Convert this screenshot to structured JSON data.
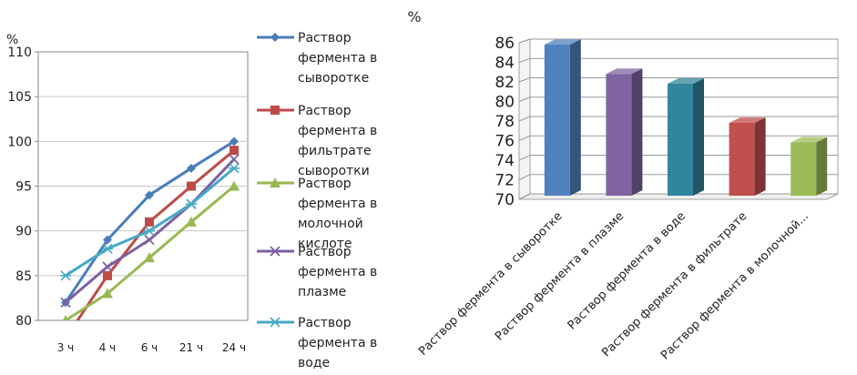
{
  "chart_data": [
    {
      "type": "line",
      "ylabel": "%",
      "ylim": [
        80,
        110
      ],
      "yticks": [
        80,
        85,
        90,
        95,
        100,
        105,
        110
      ],
      "grid": true,
      "legend_position": "right",
      "categories": [
        "3 ч",
        "4 ч",
        "6 ч",
        "21 ч",
        "24 ч"
      ],
      "series": [
        {
          "name": "Раствор фермента в сыворотке",
          "legend_lines": [
            "Раствор",
            "фермента в",
            "сыворотке"
          ],
          "color": "#4A7EBB",
          "marker": "diamond",
          "values": [
            82,
            89,
            94,
            97,
            100
          ]
        },
        {
          "name": "Раствор фермента в фильтрате сыворотки",
          "legend_lines": [
            "Раствор",
            "фермента в",
            "фильтрате",
            "сыворотки"
          ],
          "color": "#BE4B48",
          "marker": "square",
          "values": [
            78,
            85,
            91,
            95,
            99
          ]
        },
        {
          "name": "Раствор фермента в молочной кислоте",
          "legend_lines": [
            "Раствор",
            "фермента в",
            "молочной",
            "кислоте"
          ],
          "color": "#98B954",
          "marker": "triangle",
          "values": [
            80,
            83,
            87,
            91,
            95
          ]
        },
        {
          "name": "Раствор фермента в плазме",
          "legend_lines": [
            "Раствор",
            "фермента в",
            "плазме"
          ],
          "color": "#7D60A0",
          "marker": "x",
          "values": [
            82,
            86,
            89,
            93,
            98
          ]
        },
        {
          "name": "Раствор фермента в воде",
          "legend_lines": [
            "Раствор",
            "фермента в",
            "воде"
          ],
          "color": "#46AAC5",
          "marker": "star",
          "values": [
            85,
            88,
            90,
            93,
            97
          ]
        }
      ]
    },
    {
      "type": "bar",
      "title": "%",
      "ylim": [
        70,
        86
      ],
      "yticks": [
        70,
        72,
        74,
        76,
        78,
        80,
        82,
        84,
        86
      ],
      "grid": true,
      "categories": [
        "Раствор фермента в сыворотке",
        "Раствор фермента в плазме",
        "Раствор фермента в воде",
        "Раствор фермента в фильтрате",
        "Раствор фермента в молочной..."
      ],
      "values": [
        86,
        83,
        82,
        78,
        76
      ],
      "colors": [
        "#4F81BD",
        "#8064A2",
        "#31859C",
        "#C0504D",
        "#9BBB59"
      ]
    }
  ]
}
